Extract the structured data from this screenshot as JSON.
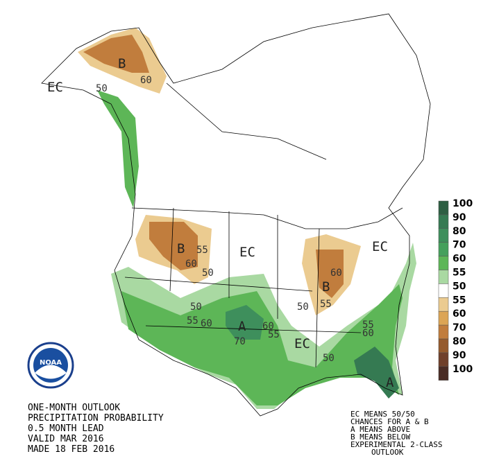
{
  "map_labels": [
    "EC",
    "B",
    "60",
    "50",
    "B",
    "55",
    "60",
    "50",
    "EC",
    "B",
    "60",
    "55",
    "50",
    "EC",
    "50",
    "55",
    "60",
    "A",
    "60",
    "55",
    "70",
    "EC",
    "50",
    "55",
    "60",
    "A"
  ],
  "legend": [
    {
      "label": "100",
      "color": "#2d5e42"
    },
    {
      "label": "90",
      "color": "#357a52"
    },
    {
      "label": "80",
      "color": "#3e8f5c"
    },
    {
      "label": "70",
      "color": "#45a05c"
    },
    {
      "label": "60",
      "color": "#5db657"
    },
    {
      "label": "55",
      "color": "#a9d9a2"
    },
    {
      "label": "50",
      "color": "#ffffff"
    },
    {
      "label": "55",
      "color": "#ebcb90"
    },
    {
      "label": "60",
      "color": "#dca555"
    },
    {
      "label": "70",
      "color": "#c17d3d"
    },
    {
      "label": "80",
      "color": "#955a2c"
    },
    {
      "label": "90",
      "color": "#70402a"
    },
    {
      "label": "100",
      "color": "#4a2c24"
    }
  ],
  "logo": "NOAA",
  "title_lines": [
    "ONE-MONTH OUTLOOK",
    "PRECIPITATION PROBABILITY",
    "0.5 MONTH LEAD",
    "VALID MAR 2016",
    "MADE 18 FEB 2016"
  ],
  "key_lines": [
    "EC MEANS 50/50",
    "CHANCES FOR A & B",
    "A MEANS ABOVE",
    "B MEANS BELOW",
    "EXPERIMENTAL 2-CLASS",
    "OUTLOOK"
  ]
}
